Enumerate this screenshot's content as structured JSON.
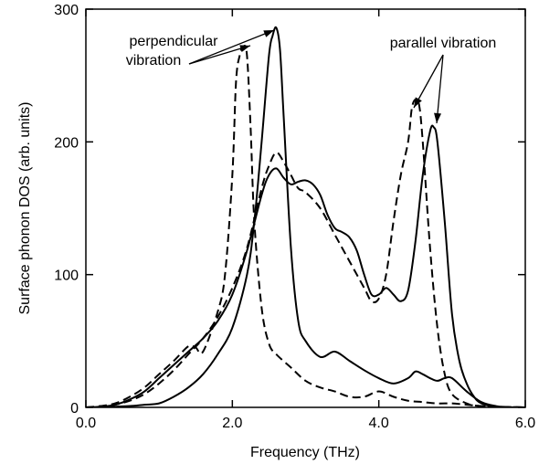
{
  "chart_data": {
    "type": "line",
    "title": "",
    "xlabel": "Frequency (THz)",
    "ylabel": "Surface phonon DOS (arb. units)",
    "xlim": [
      0.0,
      6.0
    ],
    "ylim": [
      0,
      300
    ],
    "xticks": [
      0.0,
      2.0,
      4.0,
      6.0
    ],
    "xtick_labels": [
      "0.0",
      "2.0",
      "4.0",
      "6.0"
    ],
    "yticks": [
      0,
      100,
      200,
      300
    ],
    "ytick_labels": [
      "0",
      "100",
      "200",
      "300"
    ],
    "grid": false,
    "legend": "none",
    "series": [
      {
        "style": "solid",
        "x": [
          0.0,
          0.2,
          0.4,
          0.6,
          0.8,
          1.0,
          1.2,
          1.4,
          1.6,
          1.8,
          2.0,
          2.2,
          2.3,
          2.4,
          2.5,
          2.55,
          2.6,
          2.65,
          2.7,
          2.8,
          2.9,
          3.0,
          3.2,
          3.4,
          3.6,
          3.8,
          4.0,
          4.2,
          4.4,
          4.5,
          4.6,
          4.7,
          4.8,
          4.9,
          5.0,
          5.2,
          5.4,
          5.6,
          5.8,
          6.0
        ],
        "y": [
          0,
          0,
          0.5,
          1,
          2,
          3,
          8,
          15,
          25,
          40,
          60,
          100,
          140,
          200,
          265,
          280,
          286,
          270,
          220,
          120,
          65,
          50,
          38,
          42,
          35,
          28,
          22,
          18,
          22,
          27,
          25,
          22,
          20,
          22,
          22,
          12,
          4,
          1,
          0,
          0
        ]
      },
      {
        "style": "solid",
        "x": [
          0.0,
          0.2,
          0.4,
          0.6,
          0.8,
          1.0,
          1.2,
          1.4,
          1.6,
          1.8,
          2.0,
          2.2,
          2.4,
          2.5,
          2.6,
          2.7,
          2.8,
          2.9,
          3.0,
          3.1,
          3.2,
          3.3,
          3.4,
          3.5,
          3.6,
          3.7,
          3.8,
          3.9,
          4.0,
          4.1,
          4.2,
          4.3,
          4.4,
          4.5,
          4.6,
          4.7,
          4.75,
          4.8,
          4.9,
          5.0,
          5.1,
          5.2,
          5.3,
          5.4,
          5.6,
          6.0
        ],
        "y": [
          0,
          0.5,
          2,
          6,
          12,
          22,
          32,
          42,
          52,
          65,
          85,
          118,
          160,
          175,
          180,
          173,
          168,
          170,
          171,
          168,
          160,
          145,
          135,
          132,
          128,
          118,
          100,
          85,
          85,
          90,
          85,
          80,
          88,
          125,
          175,
          208,
          211,
          200,
          140,
          70,
          35,
          18,
          8,
          3,
          0.5,
          0
        ]
      },
      {
        "style": "dashed",
        "x": [
          0.0,
          0.2,
          0.4,
          0.6,
          0.8,
          1.0,
          1.2,
          1.4,
          1.5,
          1.6,
          1.8,
          1.9,
          2.0,
          2.05,
          2.1,
          2.15,
          2.2,
          2.25,
          2.3,
          2.4,
          2.5,
          2.6,
          2.8,
          3.0,
          3.2,
          3.4,
          3.6,
          3.8,
          4.0,
          4.2,
          4.4,
          4.6,
          4.8,
          5.0,
          5.2,
          5.4,
          5.6,
          6.0
        ],
        "y": [
          0,
          1,
          3,
          8,
          15,
          25,
          35,
          46,
          45,
          42,
          72,
          100,
          175,
          245,
          265,
          272,
          265,
          210,
          140,
          75,
          48,
          40,
          30,
          20,
          15,
          12,
          8,
          8,
          12,
          8,
          5,
          4,
          3,
          3,
          2,
          1,
          0.5,
          0
        ]
      },
      {
        "style": "dashed",
        "x": [
          0.0,
          0.2,
          0.4,
          0.6,
          0.8,
          1.0,
          1.2,
          1.4,
          1.6,
          1.8,
          2.0,
          2.2,
          2.4,
          2.5,
          2.6,
          2.7,
          2.8,
          2.9,
          3.0,
          3.2,
          3.4,
          3.6,
          3.8,
          3.9,
          4.0,
          4.1,
          4.2,
          4.3,
          4.4,
          4.45,
          4.5,
          4.55,
          4.6,
          4.7,
          4.8,
          4.9,
          5.0,
          5.2,
          5.4,
          6.0
        ],
        "y": [
          0,
          0.5,
          2,
          5,
          10,
          18,
          28,
          40,
          52,
          68,
          90,
          120,
          165,
          182,
          192,
          185,
          175,
          165,
          162,
          150,
          130,
          110,
          90,
          80,
          82,
          100,
          140,
          175,
          200,
          225,
          232,
          228,
          200,
          120,
          60,
          25,
          10,
          3,
          1,
          0
        ]
      }
    ],
    "annotations": [
      {
        "text": "perpendicular",
        "at": [
          1.6,
          270
        ]
      },
      {
        "text": "vibration",
        "at": [
          1.6,
          253
        ]
      },
      {
        "text": "parallel vibration",
        "at": [
          5.3,
          270
        ]
      }
    ]
  }
}
